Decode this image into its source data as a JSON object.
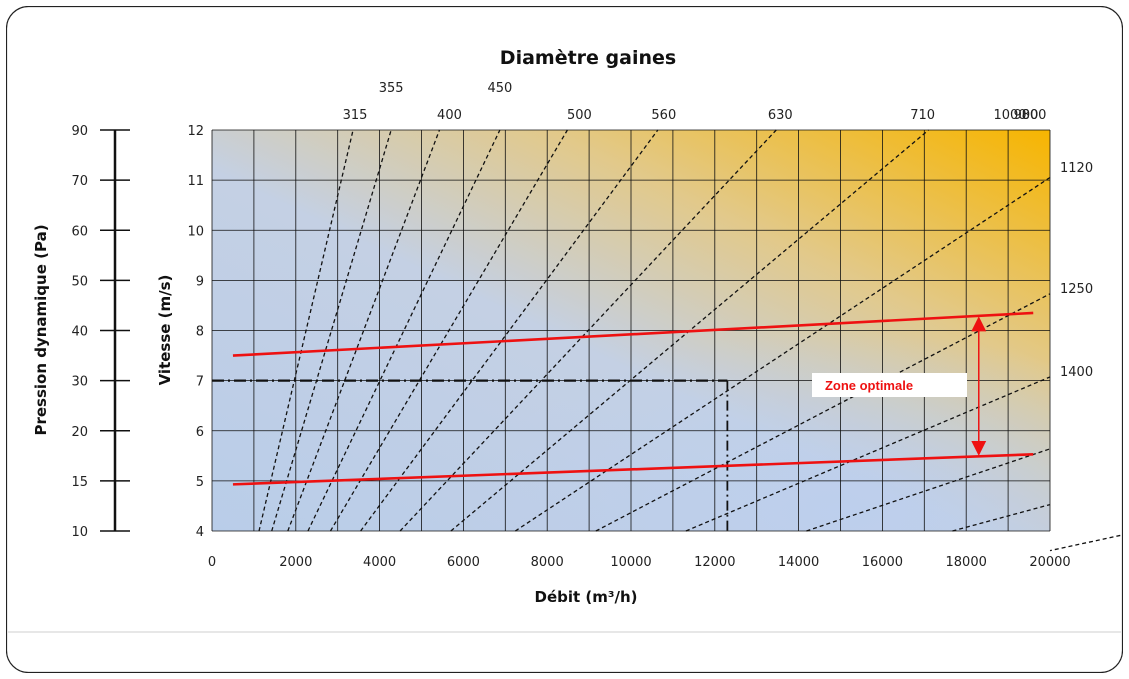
{
  "chart_data": {
    "type": "line",
    "title": "Diamètre gaines",
    "xlabel": "Débit (m³/h)",
    "ylabel": "Vitesse (m/s)",
    "y2label": "Pression dynamique (Pa)",
    "xlim": [
      0,
      20000
    ],
    "ylim": [
      4,
      12
    ],
    "x_ticks": [
      0,
      2000,
      4000,
      6000,
      8000,
      10000,
      12000,
      14000,
      16000,
      18000,
      20000
    ],
    "y_ticks": [
      4,
      5,
      6,
      7,
      8,
      9,
      10,
      11,
      12
    ],
    "pressure_ticks": [
      {
        "label": "90",
        "at_speed": 12
      },
      {
        "label": "70",
        "at_speed": 11
      },
      {
        "label": "60",
        "at_speed": 10
      },
      {
        "label": "50",
        "at_speed": 9
      },
      {
        "label": "40",
        "at_speed": 8
      },
      {
        "label": "30",
        "at_speed": 7
      },
      {
        "label": "20",
        "at_speed": 6
      },
      {
        "label": "15",
        "at_speed": 5
      },
      {
        "label": "10",
        "at_speed": 4
      }
    ],
    "grid": true,
    "background_gradient": [
      "#b8cce8",
      "#c8d2e0",
      "#f5b800"
    ],
    "duct_series": [
      {
        "name": "315",
        "label_side": "top"
      },
      {
        "name": "355",
        "label_side": "top"
      },
      {
        "name": "400",
        "label_side": "top"
      },
      {
        "name": "450",
        "label_side": "top"
      },
      {
        "name": "500",
        "label_side": "top"
      },
      {
        "name": "560",
        "label_side": "top"
      },
      {
        "name": "630",
        "label_side": "top"
      },
      {
        "name": "710",
        "label_side": "top"
      },
      {
        "name": "800",
        "label_side": "top"
      },
      {
        "name": "900",
        "label_side": "top"
      },
      {
        "name": "1000",
        "label_side": "top"
      },
      {
        "name": "1120",
        "label_side": "right"
      },
      {
        "name": "1250",
        "label_side": "right"
      },
      {
        "name": "1400",
        "label_side": "right"
      }
    ],
    "optimal_upper": {
      "x": [
        500,
        19600
      ],
      "y": [
        7.5,
        8.35
      ]
    },
    "optimal_lower": {
      "x": [
        500,
        19600
      ],
      "y": [
        4.93,
        5.53
      ]
    },
    "optimal_label": "Zone optimale",
    "optimal_arrow_x": 18300,
    "example_point": {
      "x": 12300,
      "y": 7
    },
    "colors": {
      "optimal": "#ee1111",
      "duct": "#111111",
      "guide": "#111111"
    }
  }
}
